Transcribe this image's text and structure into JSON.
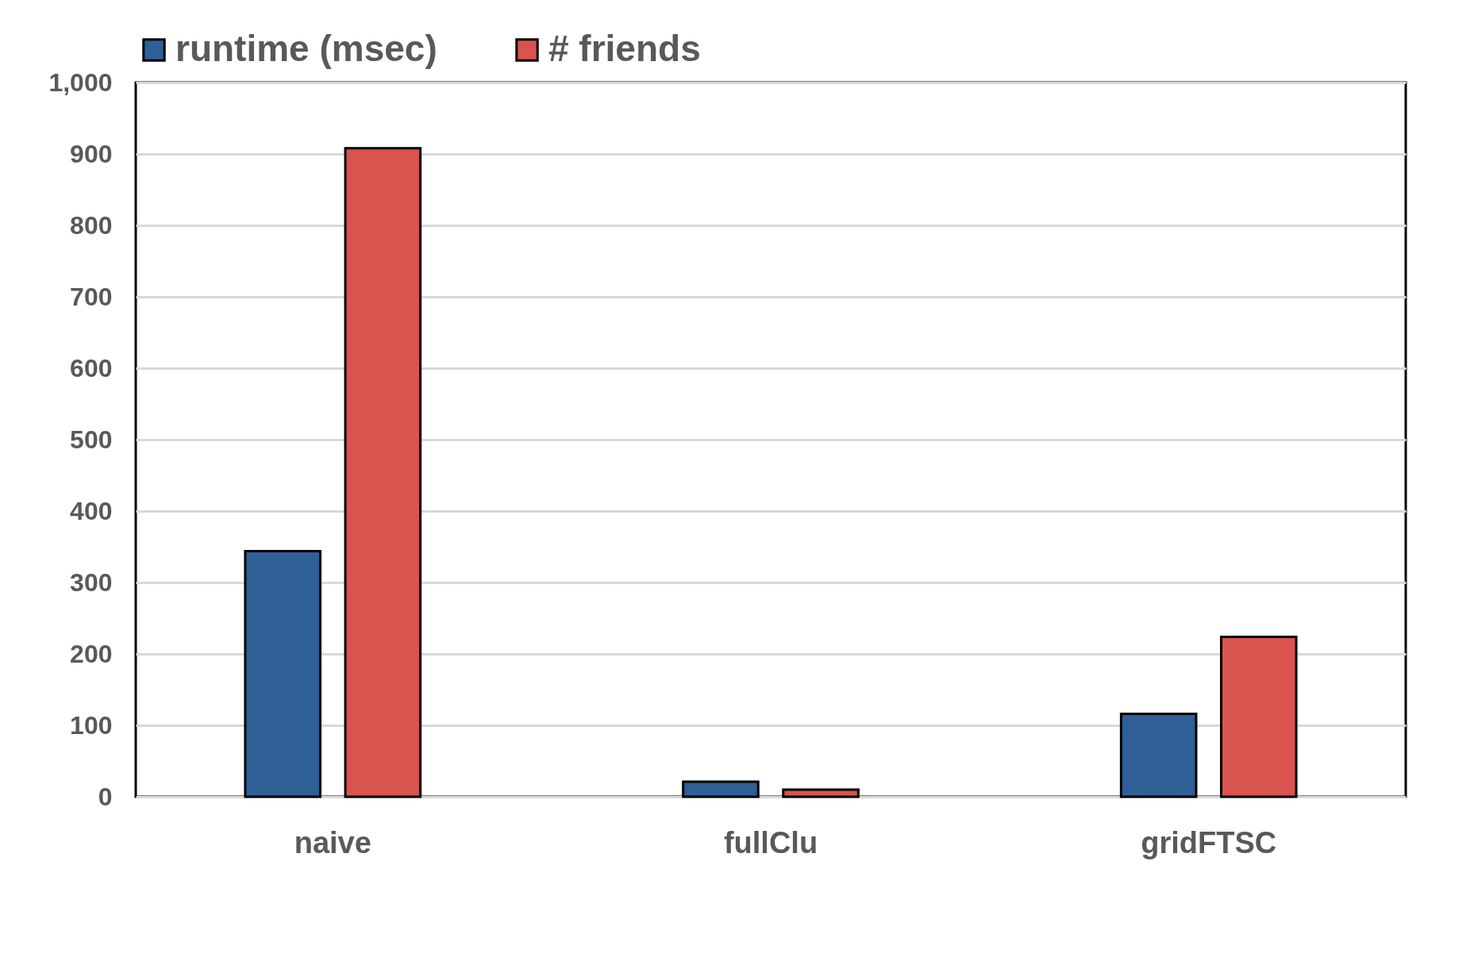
{
  "chart_data": {
    "type": "bar",
    "categories": [
      "naive",
      "fullClu",
      "gridFTSC"
    ],
    "series": [
      {
        "name": "runtime (msec)",
        "color": "#2e5f96",
        "values": [
          344,
          21,
          116
        ]
      },
      {
        "name": "# friends",
        "color": "#d9534f",
        "values": [
          908,
          10,
          224
        ]
      }
    ],
    "ylim": [
      0,
      1000
    ],
    "yticks": [
      0,
      100,
      200,
      300,
      400,
      500,
      600,
      700,
      800,
      900,
      {
        "value": 1000,
        "label": "1,000"
      }
    ],
    "grid": "y",
    "legend": "top"
  }
}
